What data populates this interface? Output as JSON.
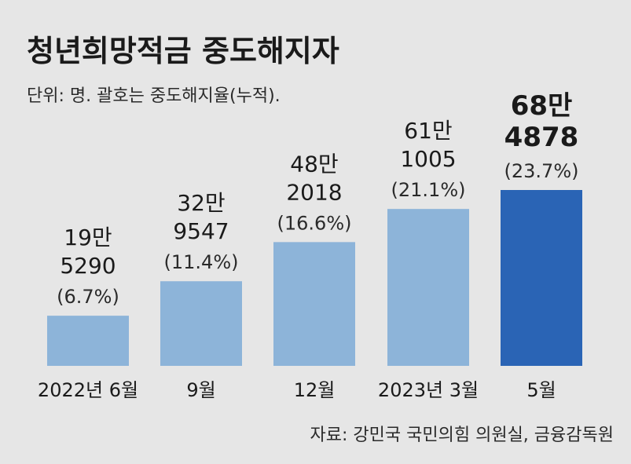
{
  "title": "청년희망적금 중도해지자",
  "unit_note": "단위: 명. 괄호는 중도해지율(누적).",
  "source": "자료: 강민국 국민의힘 의원실, 금융감독원",
  "colors": {
    "bar": "#8db4d9",
    "bar_highlight": "#2a64b5",
    "background": "#e6e6e6"
  },
  "chart_data": {
    "type": "bar",
    "categories": [
      "2022년 6월",
      "9월",
      "12월",
      "2023년 3월",
      "5월"
    ],
    "values": [
      195290,
      329547,
      482018,
      611005,
      684878
    ],
    "value_labels": [
      [
        "19만",
        "5290"
      ],
      [
        "32만",
        "9547"
      ],
      [
        "48만",
        "2018"
      ],
      [
        "61만",
        "1005"
      ],
      [
        "68만",
        "4878"
      ]
    ],
    "rate_labels": [
      "(6.7%)",
      "(11.4%)",
      "(16.6%)",
      "(21.1%)",
      "(23.7%)"
    ],
    "rates": [
      6.7,
      11.4,
      16.6,
      21.1,
      23.7
    ],
    "highlight_index": 4,
    "xlabel": "",
    "ylabel": "",
    "grid": false,
    "legend": "none"
  }
}
